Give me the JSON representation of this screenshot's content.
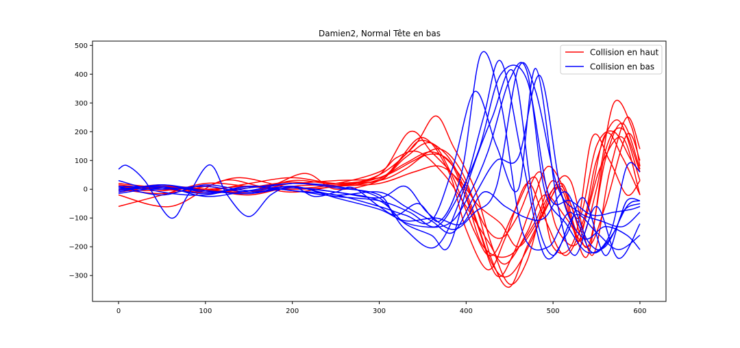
{
  "chart_data": {
    "type": "line",
    "title": "Damien2, Normal Tête en bas",
    "xlabel": "",
    "ylabel": "",
    "xlim": [
      -30,
      630
    ],
    "ylim": [
      -390,
      515
    ],
    "xticks": [
      0,
      100,
      200,
      300,
      400,
      500,
      600
    ],
    "yticks": [
      -300,
      -200,
      -100,
      0,
      100,
      200,
      300,
      400,
      500
    ],
    "grid": false,
    "legend_position": "top-right",
    "legend": [
      {
        "label": "Collision en haut",
        "color": "#ff0000"
      },
      {
        "label": "Collision en bas",
        "color": "#0000ff"
      }
    ],
    "series": [
      {
        "group": "Collision en haut",
        "color": "#ff0000",
        "x": [
          0,
          50,
          100,
          150,
          200,
          250,
          300,
          330,
          360,
          385,
          410,
          430,
          450,
          470,
          490,
          510,
          530,
          550,
          570,
          590,
          600
        ],
        "y": [
          0,
          -5,
          10,
          -10,
          20,
          10,
          40,
          90,
          130,
          80,
          -50,
          -250,
          -340,
          -200,
          -80,
          20,
          -100,
          150,
          200,
          100,
          60
        ]
      },
      {
        "group": "Collision en haut",
        "color": "#ff0000",
        "x": [
          0,
          50,
          100,
          150,
          200,
          250,
          300,
          340,
          365,
          385,
          410,
          430,
          450,
          470,
          490,
          510,
          530,
          550,
          570,
          590,
          600
        ],
        "y": [
          -60,
          -20,
          20,
          10,
          0,
          10,
          50,
          150,
          255,
          150,
          0,
          -200,
          -330,
          -250,
          -50,
          0,
          -180,
          0,
          300,
          220,
          80
        ]
      },
      {
        "group": "Collision en haut",
        "color": "#ff0000",
        "x": [
          0,
          50,
          100,
          150,
          200,
          250,
          300,
          335,
          360,
          390,
          410,
          435,
          455,
          475,
          495,
          520,
          540,
          560,
          580,
          600
        ],
        "y": [
          10,
          5,
          0,
          -10,
          30,
          20,
          50,
          200,
          130,
          30,
          -100,
          -300,
          -220,
          -60,
          80,
          -50,
          -200,
          100,
          230,
          70
        ]
      },
      {
        "group": "Collision en haut",
        "color": "#ff0000",
        "x": [
          0,
          50,
          100,
          150,
          200,
          250,
          300,
          320,
          350,
          380,
          400,
          425,
          445,
          470,
          490,
          515,
          540,
          560,
          580,
          600
        ],
        "y": [
          5,
          10,
          -5,
          20,
          40,
          20,
          30,
          90,
          180,
          60,
          -140,
          -280,
          -170,
          20,
          -100,
          -230,
          -60,
          190,
          110,
          -20
        ]
      },
      {
        "group": "Collision en haut",
        "color": "#ff0000",
        "x": [
          0,
          60,
          120,
          170,
          215,
          250,
          300,
          330,
          360,
          385,
          410,
          430,
          455,
          480,
          500,
          525,
          545,
          565,
          585,
          600
        ],
        "y": [
          -20,
          -60,
          30,
          10,
          55,
          0,
          30,
          110,
          160,
          40,
          -150,
          -230,
          -80,
          40,
          -200,
          -170,
          180,
          100,
          -20,
          30
        ]
      },
      {
        "group": "Collision en haut",
        "color": "#ff0000",
        "x": [
          0,
          50,
          100,
          140,
          200,
          250,
          300,
          330,
          355,
          380,
          400,
          420,
          450,
          480,
          500,
          520,
          540,
          560,
          580,
          600
        ],
        "y": [
          0,
          -15,
          10,
          40,
          5,
          15,
          30,
          70,
          120,
          100,
          -30,
          -200,
          -230,
          -110,
          30,
          -100,
          -230,
          130,
          210,
          60
        ]
      },
      {
        "group": "Collision en haut",
        "color": "#ff0000",
        "x": [
          0,
          50,
          100,
          150,
          200,
          250,
          300,
          340,
          370,
          395,
          420,
          440,
          460,
          485,
          505,
          530,
          550,
          575,
          600
        ],
        "y": [
          15,
          0,
          -10,
          5,
          20,
          30,
          40,
          100,
          140,
          60,
          -120,
          -170,
          -90,
          60,
          -140,
          -180,
          100,
          240,
          30
        ]
      },
      {
        "group": "Collision en haut",
        "color": "#ff0000",
        "x": [
          0,
          50,
          100,
          150,
          200,
          250,
          300,
          320,
          345,
          375,
          400,
          425,
          445,
          470,
          490,
          515,
          540,
          560,
          585,
          600
        ],
        "y": [
          -10,
          10,
          0,
          -20,
          10,
          20,
          60,
          110,
          130,
          50,
          -60,
          -180,
          -260,
          -150,
          -20,
          -100,
          -200,
          -60,
          190,
          100
        ]
      },
      {
        "group": "Collision en haut",
        "color": "#ff0000",
        "x": [
          0,
          50,
          100,
          150,
          200,
          250,
          300,
          340,
          370,
          395,
          415,
          440,
          460,
          485,
          510,
          530,
          555,
          580,
          600
        ],
        "y": [
          20,
          5,
          0,
          10,
          -10,
          10,
          20,
          60,
          80,
          20,
          -60,
          -120,
          -200,
          -100,
          10,
          -150,
          80,
          180,
          -20
        ]
      },
      {
        "group": "Collision en haut",
        "color": "#ff0000",
        "x": [
          0,
          50,
          100,
          150,
          200,
          250,
          300,
          330,
          350,
          380,
          405,
          430,
          450,
          475,
          500,
          520,
          545,
          565,
          585,
          600
        ],
        "y": [
          -5,
          15,
          -15,
          5,
          25,
          10,
          35,
          120,
          170,
          110,
          -50,
          -260,
          -300,
          -180,
          0,
          30,
          -230,
          60,
          250,
          140
        ]
      },
      {
        "group": "Collision en bas",
        "color": "#0000ff",
        "x": [
          0,
          10,
          30,
          60,
          80,
          105,
          125,
          150,
          175,
          200,
          225,
          250,
          270,
          300,
          320,
          345,
          370,
          395,
          417,
          440,
          465,
          495,
          520,
          545,
          570,
          585,
          600
        ],
        "y": [
          70,
          82,
          30,
          -100,
          -20,
          85,
          -20,
          -95,
          -20,
          10,
          -25,
          -10,
          5,
          -60,
          -90,
          -50,
          -110,
          60,
          470,
          300,
          -150,
          -200,
          -80,
          -220,
          -150,
          -40,
          -40
        ]
      },
      {
        "group": "Collision en bas",
        "color": "#0000ff",
        "x": [
          0,
          50,
          100,
          150,
          200,
          250,
          300,
          330,
          365,
          395,
          420,
          440,
          465,
          490,
          515,
          535,
          560,
          580,
          600
        ],
        "y": [
          -10,
          15,
          -10,
          5,
          20,
          10,
          -30,
          -140,
          -200,
          -20,
          250,
          445,
          100,
          -230,
          -160,
          -30,
          -230,
          -80,
          -50
        ]
      },
      {
        "group": "Collision en bas",
        "color": "#0000ff",
        "x": [
          0,
          50,
          100,
          150,
          200,
          250,
          300,
          330,
          360,
          385,
          410,
          435,
          460,
          480,
          505,
          525,
          550,
          575,
          600
        ],
        "y": [
          30,
          -10,
          -20,
          10,
          -5,
          -20,
          -60,
          -90,
          -110,
          80,
          340,
          150,
          0,
          420,
          -50,
          -230,
          -60,
          -240,
          -120
        ]
      },
      {
        "group": "Collision en bas",
        "color": "#0000ff",
        "x": [
          0,
          50,
          100,
          150,
          200,
          250,
          300,
          330,
          360,
          380,
          405,
          430,
          455,
          478,
          500,
          525,
          550,
          575,
          600
        ],
        "y": [
          -15,
          5,
          -5,
          -15,
          5,
          -10,
          -40,
          -120,
          -160,
          -200,
          50,
          250,
          405,
          -60,
          -230,
          -90,
          -150,
          -210,
          -160
        ]
      },
      {
        "group": "Collision en bas",
        "color": "#0000ff",
        "x": [
          0,
          50,
          100,
          150,
          200,
          250,
          300,
          330,
          360,
          385,
          410,
          435,
          460,
          485,
          510,
          535,
          560,
          585,
          600
        ],
        "y": [
          10,
          -20,
          15,
          -5,
          10,
          -20,
          -10,
          -60,
          -110,
          -150,
          -20,
          100,
          110,
          395,
          -20,
          -170,
          -130,
          -160,
          -210
        ]
      },
      {
        "group": "Collision en bas",
        "color": "#0000ff",
        "x": [
          0,
          50,
          100,
          150,
          200,
          250,
          300,
          320,
          350,
          380,
          400,
          425,
          450,
          470,
          490,
          515,
          540,
          565,
          585,
          600
        ],
        "y": [
          0,
          10,
          -25,
          -5,
          20,
          5,
          -20,
          -100,
          -130,
          -120,
          -40,
          130,
          380,
          410,
          0,
          -120,
          -220,
          -160,
          80,
          60
        ]
      },
      {
        "group": "Collision en bas",
        "color": "#0000ff",
        "x": [
          0,
          50,
          100,
          150,
          200,
          250,
          300,
          330,
          355,
          385,
          410,
          435,
          460,
          480,
          505,
          530,
          555,
          580,
          600
        ],
        "y": [
          5,
          0,
          10,
          -10,
          5,
          -10,
          -30,
          10,
          -80,
          -140,
          -80,
          10,
          420,
          340,
          10,
          -80,
          -110,
          -130,
          -80
        ]
      },
      {
        "group": "Collision en bas",
        "color": "#0000ff",
        "x": [
          0,
          50,
          100,
          150,
          200,
          250,
          300,
          330,
          365,
          395,
          420,
          445,
          470,
          490,
          515,
          540,
          560,
          585,
          600
        ],
        "y": [
          -5,
          15,
          -5,
          -15,
          10,
          -30,
          -70,
          -110,
          -100,
          -120,
          -10,
          -60,
          -100,
          -100,
          -10,
          -180,
          -200,
          -60,
          -40
        ]
      },
      {
        "group": "Collision en bas",
        "color": "#0000ff",
        "x": [
          0,
          50,
          100,
          150,
          200,
          250,
          300,
          335,
          365,
          390,
          415,
          440,
          470,
          495,
          520,
          545,
          570,
          590,
          600
        ],
        "y": [
          10,
          5,
          -15,
          10,
          -5,
          -25,
          -40,
          -80,
          -130,
          -30,
          140,
          400,
          380,
          -20,
          -40,
          -90,
          -80,
          -70,
          -60
        ]
      }
    ]
  }
}
